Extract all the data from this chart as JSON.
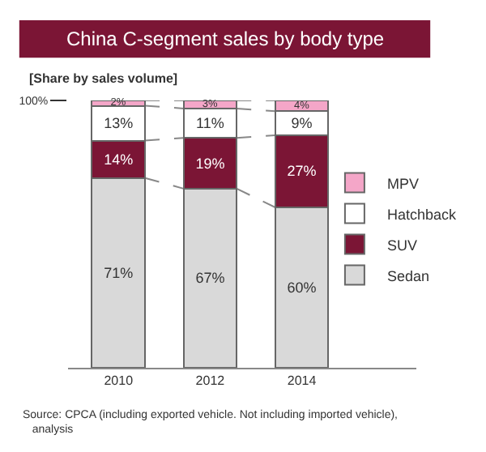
{
  "chart_data": {
    "type": "bar",
    "stacked": true,
    "title": "China C-segment sales by body type",
    "subtitle": "[Share by sales volume]",
    "categories": [
      "2010",
      "2012",
      "2014"
    ],
    "series": [
      {
        "name": "Sedan",
        "color": "#d9d9d9",
        "values": [
          71,
          67,
          60
        ],
        "value_labels": [
          "71%",
          "67%",
          "60%"
        ]
      },
      {
        "name": "SUV",
        "color": "#7b1535",
        "values": [
          14,
          19,
          27
        ],
        "value_labels": [
          "14%",
          "19%",
          "27%"
        ]
      },
      {
        "name": "Hatchback",
        "color": "#ffffff",
        "values": [
          13,
          11,
          9
        ],
        "value_labels": [
          "13%",
          "11%",
          "9%"
        ]
      },
      {
        "name": "MPV",
        "color": "#f4a6c8",
        "values": [
          2,
          3,
          4
        ],
        "value_labels": [
          "2%",
          "3%",
          "4%"
        ]
      }
    ],
    "ylim": [
      0,
      100
    ],
    "yticks": [
      {
        "value": 100,
        "label": "100%"
      }
    ],
    "legend": "right",
    "annotations": [
      "Source: CPCA (including exported vehicle. Not including imported vehicle),\nanalysis"
    ]
  }
}
